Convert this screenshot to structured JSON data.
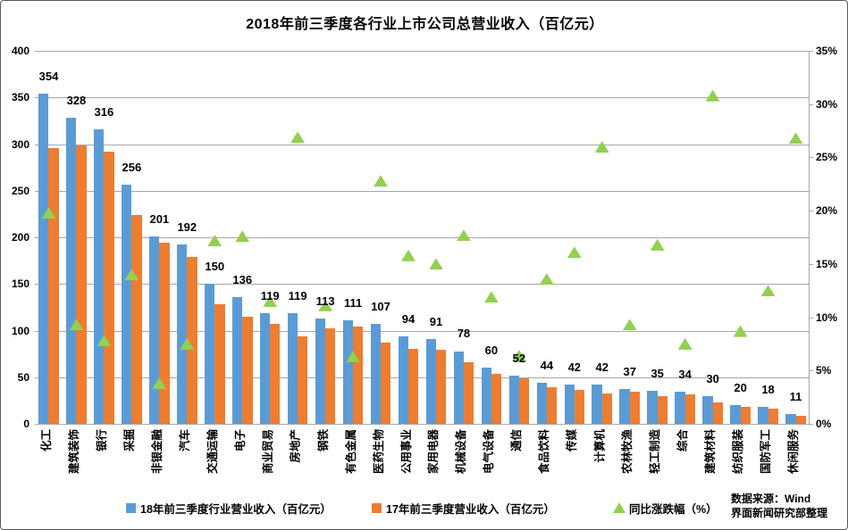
{
  "title": "2018年前三季度各行业上市公司总营业收入（百亿元）",
  "source": {
    "line1": "数据来源：Wind",
    "line2": "界面新闻研究部整理"
  },
  "legend": [
    {
      "label": "18年前三季度行业营业收入（百亿元）",
      "marker": "square",
      "color": "#5B9BD5"
    },
    {
      "label": "17年前三季度营业收入（百亿元）",
      "marker": "square",
      "color": "#ED7D31"
    },
    {
      "label": "同比涨跌幅（%）",
      "marker": "triangle",
      "color": "#92D050"
    }
  ],
  "colors": {
    "bar_2018": "#5B9BD5",
    "bar_2017": "#ED7D31",
    "triangle": "#92D050",
    "gridline": "#A6A6A6",
    "axis_text": "#000000",
    "frame_border": "#595959"
  },
  "chart_data": {
    "type": "bar",
    "title": "2018年前三季度各行业上市公司总营业收入（百亿元）",
    "xlabel": "",
    "ylabel_left": "营业收入（百亿元）",
    "ylabel_right": "同比涨跌幅（%）",
    "grid": true,
    "legend_position": "bottom",
    "categories": [
      "化工",
      "建筑装饰",
      "银行",
      "采掘",
      "非银金融",
      "汽车",
      "交通运输",
      "电子",
      "商业贸易",
      "房地产",
      "钢铁",
      "有色金属",
      "医药生物",
      "公用事业",
      "家用电器",
      "机械设备",
      "电气设备",
      "通信",
      "食品饮料",
      "传媒",
      "计算机",
      "农林牧渔",
      "轻工制造",
      "综合",
      "建筑材料",
      "纺织服装",
      "国防军工",
      "休闲服务"
    ],
    "series": [
      {
        "name": "18年前三季度行业营业收入（百亿元）",
        "type": "bar",
        "axis": "left",
        "color": "#5B9BD5",
        "data_labels": true,
        "values": [
          354,
          328,
          316,
          256,
          201,
          192,
          150,
          136,
          119,
          119,
          113,
          111,
          107,
          94,
          91,
          78,
          60,
          52,
          44,
          42,
          42,
          37,
          35,
          34,
          30,
          20,
          18,
          11
        ]
      },
      {
        "name": "17年前三季度营业收入（百亿元）",
        "type": "bar",
        "axis": "left",
        "color": "#ED7D31",
        "data_labels": false,
        "values": [
          296,
          299,
          292,
          224,
          194,
          179,
          128,
          115,
          107,
          94,
          102,
          104,
          87,
          80,
          79,
          66,
          54,
          49,
          39,
          36,
          33,
          34,
          30,
          32,
          23,
          18,
          16,
          9
        ]
      },
      {
        "name": "同比涨跌幅（%）",
        "type": "scatter-triangle",
        "axis": "right",
        "color": "#92D050",
        "data_labels": false,
        "values": [
          19.8,
          9.3,
          7.8,
          14.0,
          3.8,
          7.5,
          17.2,
          17.6,
          11.5,
          26.9,
          11.1,
          6.3,
          22.8,
          15.8,
          15.0,
          17.7,
          11.9,
          6.4,
          13.6,
          16.1,
          26.0,
          9.3,
          16.8,
          7.5,
          30.8,
          8.7,
          12.5,
          26.8
        ]
      }
    ],
    "left_axis": {
      "min": 0,
      "max": 400,
      "step": 50,
      "ticks": [
        "400",
        "350",
        "300",
        "250",
        "200",
        "150",
        "100",
        "50",
        "0"
      ]
    },
    "right_axis": {
      "min": 0,
      "max": 35,
      "step": 5,
      "ticks": [
        "35%",
        "30%",
        "25%",
        "20%",
        "15%",
        "10%",
        "5%",
        "0%"
      ]
    }
  }
}
